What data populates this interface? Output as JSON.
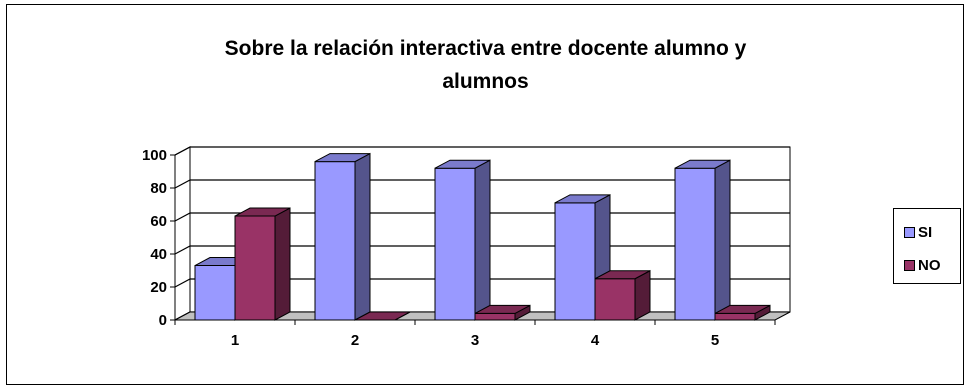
{
  "chart_data": {
    "type": "bar",
    "title_lines": [
      "Sobre la relación interactiva entre docente alumno y",
      "alumnos"
    ],
    "categories": [
      "1",
      "2",
      "3",
      "4",
      "5"
    ],
    "series": [
      {
        "name": "SI",
        "values": [
          33,
          96,
          92,
          71,
          92
        ],
        "color": "#9999ff"
      },
      {
        "name": "NO",
        "values": [
          63,
          0,
          4,
          25,
          4
        ],
        "color": "#993366"
      }
    ],
    "y_ticks": [
      "0",
      "20",
      "40",
      "60",
      "80",
      "100"
    ],
    "ylim": [
      0,
      100
    ],
    "grid": true,
    "legend_position": "right",
    "three_d": true
  }
}
